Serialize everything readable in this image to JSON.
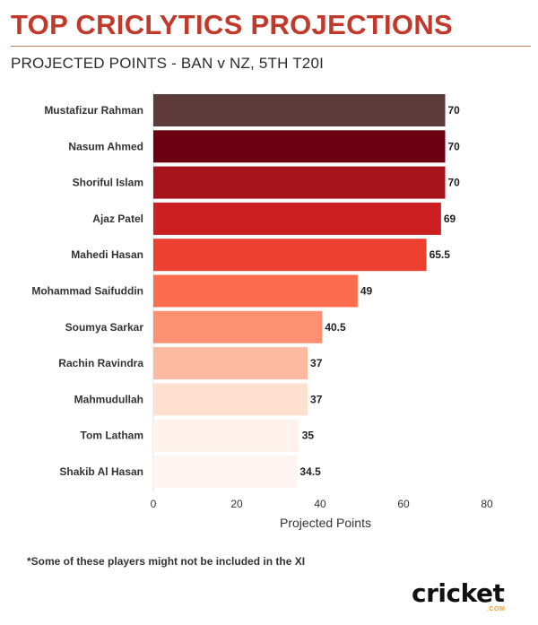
{
  "header": {
    "title": "TOP CRICLYTICS PROJECTIONS",
    "subtitle": "PROJECTED POINTS - BAN v NZ, 5TH T20I"
  },
  "footnote": "*Some of these players might not be included in the XI",
  "logo": {
    "word": "cricket",
    "sub": ".COM"
  },
  "chart_data": {
    "type": "bar",
    "orientation": "horizontal",
    "categories": [
      "Mustafizur Rahman",
      "Nasum Ahmed",
      "Shoriful Islam",
      "Ajaz Patel",
      "Mahedi Hasan",
      "Mohammad Saifuddin",
      "Soumya Sarkar",
      "Rachin Ravindra",
      "Mahmudullah",
      "Tom Latham",
      "Shakib Al Hasan"
    ],
    "values": [
      70,
      70,
      70,
      69,
      65.5,
      49,
      40.5,
      37,
      37,
      35,
      34.5
    ],
    "value_labels": [
      "70",
      "70",
      "70",
      "69",
      "65.5",
      "49",
      "40.5",
      "37",
      "37",
      "35",
      "34.5"
    ],
    "bar_colors": [
      "#5c3a3a",
      "#6b0010",
      "#a8141c",
      "#cc1f22",
      "#ee4030",
      "#fd6c4c",
      "#fc9070",
      "#fcbba0",
      "#fde0d0",
      "#fff2ec",
      "#fff5f0"
    ],
    "title": "",
    "xlabel": "Projected Points",
    "ylabel": "",
    "xlim": [
      0,
      80
    ],
    "xticks": [
      "0",
      "20",
      "40",
      "60",
      "80"
    ],
    "grid": false,
    "legend": "none"
  }
}
